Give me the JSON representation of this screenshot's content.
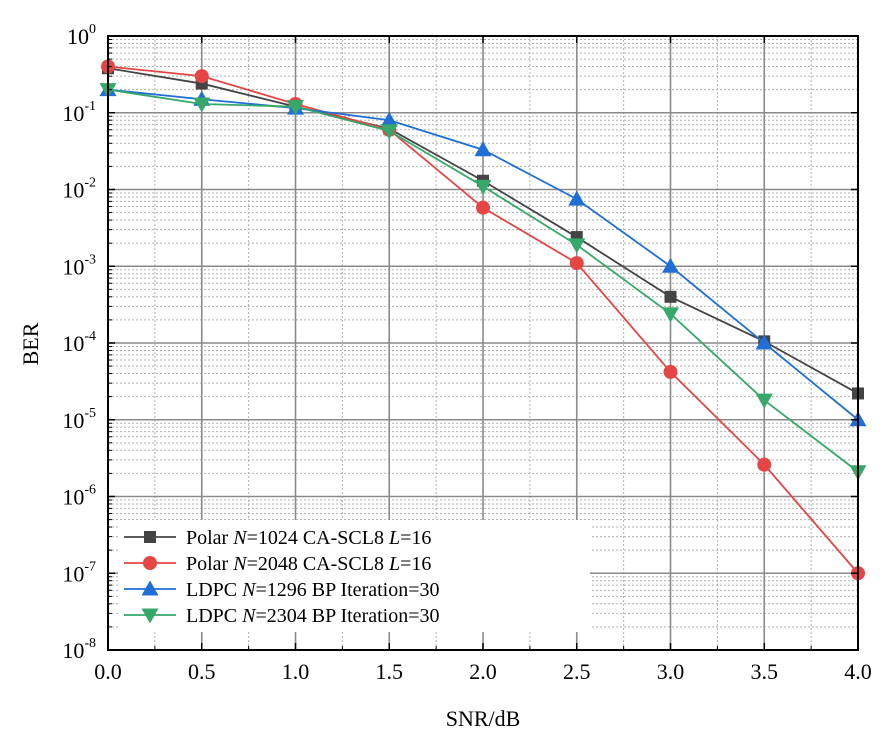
{
  "chart_data": {
    "type": "line",
    "xlabel": "SNR/dB",
    "ylabel": "BER",
    "xlim": [
      0.0,
      4.0
    ],
    "ylim": [
      1e-08,
      1
    ],
    "yscale": "log",
    "grid": true,
    "legend_position": "bottom-left",
    "x_ticks": [
      "0.0",
      "0.5",
      "1.0",
      "1.5",
      "2.0",
      "2.5",
      "3.0",
      "3.5",
      "4.0"
    ],
    "y_ticks": [
      {
        "base": "10",
        "exp": "0",
        "value": 1
      },
      {
        "base": "10",
        "exp": "-1",
        "value": 0.1
      },
      {
        "base": "10",
        "exp": "-2",
        "value": 0.01
      },
      {
        "base": "10",
        "exp": "-3",
        "value": 0.001
      },
      {
        "base": "10",
        "exp": "-4",
        "value": 0.0001
      },
      {
        "base": "10",
        "exp": "-5",
        "value": 1e-05
      },
      {
        "base": "10",
        "exp": "-6",
        "value": 1e-06
      },
      {
        "base": "10",
        "exp": "-7",
        "value": 1e-07
      },
      {
        "base": "10",
        "exp": "-8",
        "value": 1e-08
      }
    ],
    "series": [
      {
        "legend_parts": [
          {
            "t": "Polar "
          },
          {
            "t": "N",
            "i": true
          },
          {
            "t": "=1024 CA-SCL8 "
          },
          {
            "t": "L",
            "i": true
          },
          {
            "t": "=16"
          }
        ],
        "color": "#444444",
        "marker": "square",
        "x": [
          0.0,
          0.5,
          1.0,
          1.5,
          2.0,
          2.5,
          3.0,
          3.5,
          4.0
        ],
        "y": [
          0.38,
          0.24,
          0.12,
          0.062,
          0.013,
          0.0024,
          0.0004,
          0.000105,
          2.2e-05
        ]
      },
      {
        "legend_parts": [
          {
            "t": "Polar "
          },
          {
            "t": "N",
            "i": true
          },
          {
            "t": "=2048 CA-SCL8 "
          },
          {
            "t": "L",
            "i": true
          },
          {
            "t": "=16"
          }
        ],
        "color": "#e64545",
        "marker": "circle",
        "x": [
          0.0,
          0.5,
          1.0,
          1.5,
          2.0,
          2.5,
          3.0,
          3.5,
          4.0
        ],
        "y": [
          0.4,
          0.3,
          0.13,
          0.06,
          0.0058,
          0.0011,
          4.2e-05,
          2.6e-06,
          1e-07
        ]
      },
      {
        "legend_parts": [
          {
            "t": "LDPC "
          },
          {
            "t": "N",
            "i": true
          },
          {
            "t": "=1296 BP Iteration=30"
          }
        ],
        "color": "#1f6fd6",
        "marker": "triangle-up",
        "x": [
          0.0,
          0.5,
          1.0,
          1.5,
          2.0,
          2.5,
          3.0,
          3.5,
          4.0
        ],
        "y": [
          0.2,
          0.15,
          0.115,
          0.08,
          0.033,
          0.0075,
          0.001,
          0.0001,
          1e-05
        ]
      },
      {
        "legend_parts": [
          {
            "t": "LDPC "
          },
          {
            "t": "N",
            "i": true
          },
          {
            "t": "=2304 BP Iteration=30"
          }
        ],
        "color": "#35a86a",
        "marker": "triangle-down",
        "x": [
          0.0,
          0.5,
          1.0,
          1.5,
          2.0,
          2.5,
          3.0,
          3.5,
          4.0
        ],
        "y": [
          0.2,
          0.13,
          0.12,
          0.058,
          0.011,
          0.0019,
          0.00024,
          1.8e-05,
          2.1e-06
        ]
      }
    ]
  }
}
